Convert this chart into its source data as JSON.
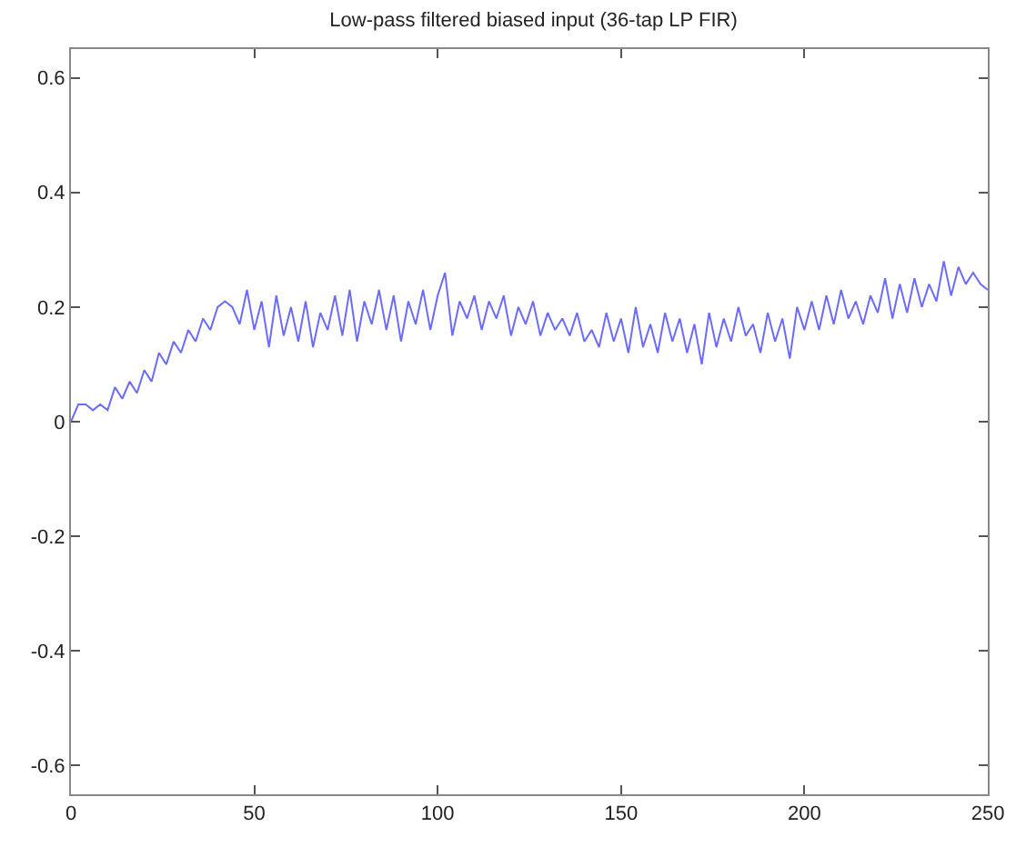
{
  "chart_data": {
    "type": "line",
    "title": "Low-pass filtered biased input (36-tap LP FIR)",
    "x": [
      0,
      2,
      4,
      6,
      8,
      10,
      12,
      14,
      16,
      18,
      20,
      22,
      24,
      26,
      28,
      30,
      32,
      34,
      36,
      38,
      40,
      42,
      44,
      46,
      48,
      50,
      52,
      54,
      56,
      58,
      60,
      62,
      64,
      66,
      68,
      70,
      72,
      74,
      76,
      78,
      80,
      82,
      84,
      86,
      88,
      90,
      92,
      94,
      96,
      98,
      100,
      102,
      104,
      106,
      108,
      110,
      112,
      114,
      116,
      118,
      120,
      122,
      124,
      126,
      128,
      130,
      132,
      134,
      136,
      138,
      140,
      142,
      144,
      146,
      148,
      150,
      152,
      154,
      156,
      158,
      160,
      162,
      164,
      166,
      168,
      170,
      172,
      174,
      176,
      178,
      180,
      182,
      184,
      186,
      188,
      190,
      192,
      194,
      196,
      198,
      200,
      202,
      204,
      206,
      208,
      210,
      212,
      214,
      216,
      218,
      220,
      222,
      224,
      226,
      228,
      230,
      232,
      234,
      236,
      238,
      240,
      242,
      244,
      246,
      248,
      250
    ],
    "series": [
      {
        "color": "#6b6bff",
        "values": [
          0.0,
          0.03,
          0.03,
          0.02,
          0.03,
          0.02,
          0.06,
          0.04,
          0.07,
          0.05,
          0.09,
          0.07,
          0.12,
          0.1,
          0.14,
          0.12,
          0.16,
          0.14,
          0.18,
          0.16,
          0.2,
          0.21,
          0.2,
          0.17,
          0.23,
          0.16,
          0.21,
          0.13,
          0.22,
          0.15,
          0.2,
          0.14,
          0.21,
          0.13,
          0.19,
          0.16,
          0.22,
          0.15,
          0.23,
          0.14,
          0.21,
          0.17,
          0.23,
          0.16,
          0.22,
          0.14,
          0.21,
          0.17,
          0.23,
          0.16,
          0.22,
          0.26,
          0.15,
          0.21,
          0.18,
          0.22,
          0.16,
          0.21,
          0.18,
          0.22,
          0.15,
          0.2,
          0.17,
          0.21,
          0.15,
          0.19,
          0.16,
          0.18,
          0.15,
          0.19,
          0.14,
          0.16,
          0.13,
          0.19,
          0.14,
          0.18,
          0.12,
          0.2,
          0.13,
          0.17,
          0.12,
          0.19,
          0.14,
          0.18,
          0.12,
          0.17,
          0.1,
          0.19,
          0.13,
          0.18,
          0.14,
          0.2,
          0.15,
          0.17,
          0.12,
          0.19,
          0.14,
          0.18,
          0.11,
          0.2,
          0.16,
          0.21,
          0.16,
          0.22,
          0.17,
          0.23,
          0.18,
          0.21,
          0.17,
          0.22,
          0.19,
          0.25,
          0.18,
          0.24,
          0.19,
          0.25,
          0.2,
          0.24,
          0.21,
          0.28,
          0.22,
          0.27,
          0.24,
          0.26,
          0.24,
          0.23
        ]
      }
    ],
    "xlim": [
      0,
      250
    ],
    "xticks": [
      0,
      50,
      100,
      150,
      200,
      250
    ],
    "ylim": [
      -0.65,
      0.65
    ],
    "yticks": [
      -0.6,
      -0.4,
      -0.2,
      0,
      0.2,
      0.4,
      0.6
    ],
    "grid": false
  }
}
